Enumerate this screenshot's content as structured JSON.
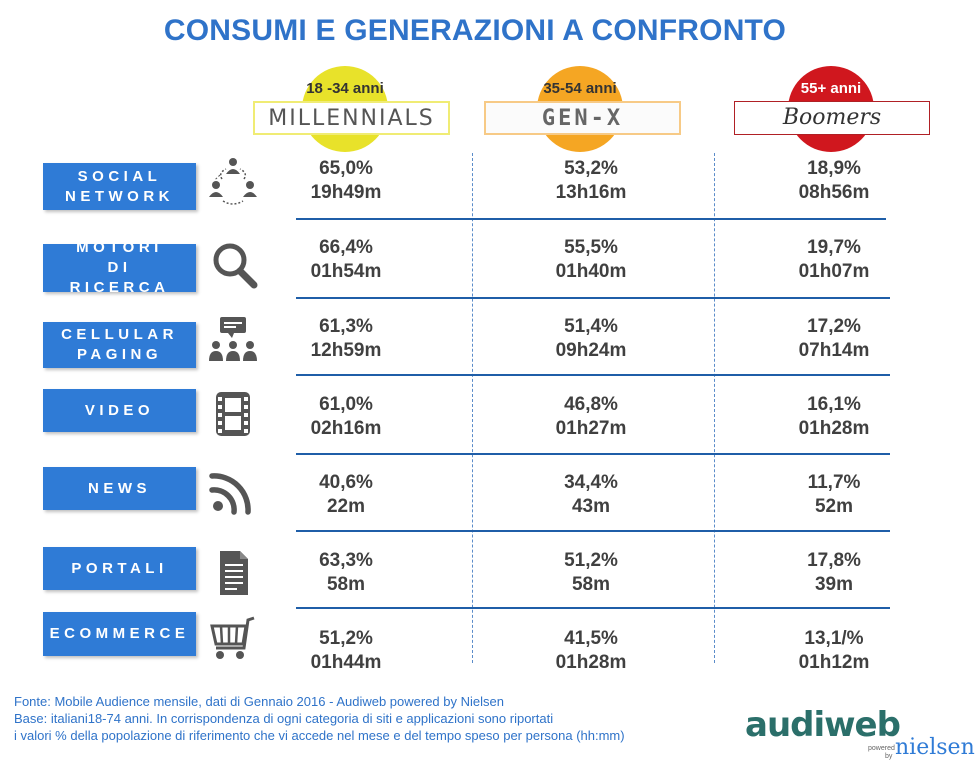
{
  "title": "CONSUMI E GENERAZIONI A CONFRONTO",
  "generations": [
    {
      "age": "18 -34 anni",
      "name": "MILLENNIALS",
      "color": "#e8e22a"
    },
    {
      "age": "35-54 anni",
      "name": "GEN-X",
      "color": "#f5a623"
    },
    {
      "age": "55+ anni",
      "name": "Boomers",
      "color": "#d0171e"
    }
  ],
  "categories": [
    {
      "label": "SOCIAL NETWORK",
      "icon": "social-network-icon",
      "values": [
        {
          "pct": "65,0%",
          "time": "19h49m"
        },
        {
          "pct": "53,2%",
          "time": "13h16m"
        },
        {
          "pct": "18,9%",
          "time": "08h56m"
        }
      ]
    },
    {
      "label": "MOTORI DI RICERCA",
      "icon": "search-icon",
      "values": [
        {
          "pct": "66,4%",
          "time": "01h54m"
        },
        {
          "pct": "55,5%",
          "time": "01h40m"
        },
        {
          "pct": "19,7%",
          "time": "01h07m"
        }
      ]
    },
    {
      "label": "CELLULAR PAGING",
      "icon": "chat-group-icon",
      "values": [
        {
          "pct": "61,3%",
          "time": "12h59m"
        },
        {
          "pct": "51,4%",
          "time": "09h24m"
        },
        {
          "pct": "17,2%",
          "time": "07h14m"
        }
      ]
    },
    {
      "label": "VIDEO",
      "icon": "film-icon",
      "values": [
        {
          "pct": "61,0%",
          "time": "02h16m"
        },
        {
          "pct": "46,8%",
          "time": "01h27m"
        },
        {
          "pct": "16,1%",
          "time": "01h28m"
        }
      ]
    },
    {
      "label": "NEWS",
      "icon": "rss-icon",
      "values": [
        {
          "pct": "40,6%",
          "time": "22m"
        },
        {
          "pct": "34,4%",
          "time": "43m"
        },
        {
          "pct": "11,7%",
          "time": "52m"
        }
      ]
    },
    {
      "label": "PORTALI",
      "icon": "document-icon",
      "values": [
        {
          "pct": "63,3%",
          "time": "58m"
        },
        {
          "pct": "51,2%",
          "time": "58m"
        },
        {
          "pct": "17,8%",
          "time": "39m"
        }
      ]
    },
    {
      "label": "ECOMMERCE",
      "icon": "cart-icon",
      "values": [
        {
          "pct": "51,2%",
          "time": "01h44m"
        },
        {
          "pct": "41,5%",
          "time": "01h28m"
        },
        {
          "pct": "13,1/%",
          "time": "01h12m"
        }
      ]
    }
  ],
  "footer": {
    "line1": "Fonte: Mobile Audience mensile, dati di Gennaio 2016 - Audiweb powered by Nielsen",
    "line2": "Base: italiani18-74 anni.  In corrispondenza di ogni categoria di siti e applicazioni sono riportati",
    "line3": "i valori % della popolazione di riferimento che vi accede nel mese e del tempo speso per persona (hh:mm)"
  },
  "logo": {
    "brand": "audiweb",
    "powered": "powered",
    "by": "by",
    "partner": "nielsen"
  },
  "colors": {
    "title": "#2f73c9",
    "button": "#2f7bd6",
    "lines": "#1f5ea8"
  }
}
